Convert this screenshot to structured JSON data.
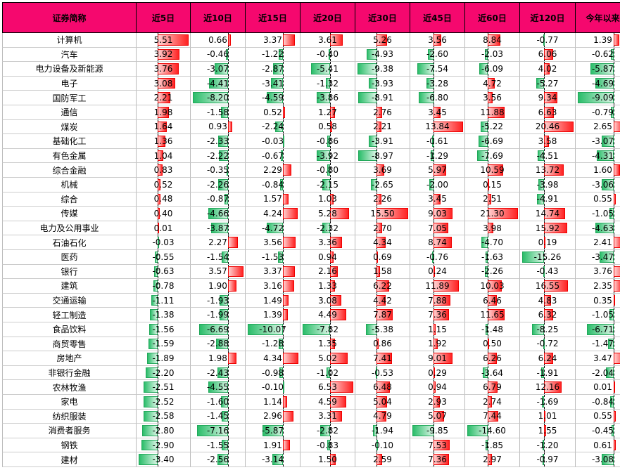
{
  "table": {
    "header": [
      "证券简称",
      "近5日",
      "近10日",
      "近15日",
      "近20日",
      "近30日",
      "近45日",
      "近60日",
      "近120日",
      "今年以来"
    ],
    "rows": [
      [
        "计算机",
        "5.51",
        "0.66",
        "3.37",
        "3.61",
        "5.26",
        "3.56",
        "8.84",
        "-0.77",
        "1.39"
      ],
      [
        "汽车",
        "3.92",
        "-0.46",
        "-1.22",
        "-0.40",
        "-4.93",
        "-2.60",
        "-2.03",
        "6.06",
        "-0.62"
      ],
      [
        "电力设备及新能源",
        "3.76",
        "-3.07",
        "-2.87",
        "-5.41",
        "-9.38",
        "-7.54",
        "-6.09",
        "4.02",
        "-5.87"
      ],
      [
        "电子",
        "3.08",
        "-4.41",
        "-3.41",
        "-1.32",
        "-3.93",
        "-3.28",
        "4.72",
        "-5.27",
        "-4.69"
      ],
      [
        "国防军工",
        "2.21",
        "-8.20",
        "-4.59",
        "-3.86",
        "-8.91",
        "-6.80",
        "3.56",
        "9.34",
        "-9.09"
      ],
      [
        "通信",
        "1.98",
        "-1.58",
        "0.52",
        "1.27",
        "2.76",
        "3.45",
        "11.88",
        "6.63",
        "-0.79"
      ],
      [
        "煤炭",
        "1.64",
        "0.93",
        "-2.24",
        "0.58",
        "2.21",
        "13.84",
        "-5.22",
        "20.46",
        "2.65"
      ],
      [
        "基础化工",
        "1.36",
        "-2.33",
        "-0.03",
        "-0.86",
        "-3.91",
        "-0.61",
        "-6.69",
        "3.58",
        "-3.07"
      ],
      [
        "有色金属",
        "1.04",
        "-2.22",
        "-0.67",
        "-3.92",
        "-8.97",
        "-1.29",
        "-7.69",
        "-4.51",
        "-4.31"
      ],
      [
        "综合金融",
        "0.83",
        "-0.35",
        "2.29",
        "-0.80",
        "3.69",
        "5.97",
        "10.59",
        "13.72",
        "1.60"
      ],
      [
        "机械",
        "0.52",
        "-2.26",
        "-0.84",
        "-2.15",
        "-2.65",
        "-2.00",
        "0.15",
        "-3.98",
        "-3.06"
      ],
      [
        "综合",
        "0.48",
        "-0.87",
        "1.57",
        "1.03",
        "2.26",
        "3.45",
        "2.51",
        "-4.91",
        "0.55"
      ],
      [
        "传媒",
        "0.40",
        "-4.66",
        "4.24",
        "5.28",
        "15.50",
        "9.03",
        "21.30",
        "14.74",
        "-1.05"
      ],
      [
        "电力及公用事业",
        "0.01",
        "-3.87",
        "-4.72",
        "-2.32",
        "2.70",
        "7.05",
        "3.98",
        "15.92",
        "-4.63"
      ],
      [
        "石油石化",
        "-0.03",
        "2.27",
        "3.56",
        "3.36",
        "4.34",
        "8.74",
        "-4.70",
        "0.19",
        "2.41"
      ],
      [
        "医药",
        "-0.55",
        "-1.54",
        "-1.53",
        "0.94",
        "0.69",
        "-0.76",
        "-1.63",
        "-15.26",
        "-3.47"
      ],
      [
        "银行",
        "-0.63",
        "3.57",
        "3.37",
        "2.16",
        "1.58",
        "0.24",
        "-2.26",
        "-0.43",
        "3.76"
      ],
      [
        "建筑",
        "-0.78",
        "1.90",
        "3.16",
        "1.33",
        "6.22",
        "11.89",
        "10.03",
        "16.55",
        "2.35"
      ],
      [
        "交通运输",
        "-1.11",
        "-1.93",
        "1.49",
        "3.08",
        "4.42",
        "7.88",
        "6.46",
        "4.83",
        "0.35"
      ],
      [
        "轻工制造",
        "-1.38",
        "-1.99",
        "1.39",
        "4.49",
        "7.87",
        "7.36",
        "11.65",
        "6.32",
        "-1.05"
      ],
      [
        "食品饮料",
        "-1.56",
        "-6.69",
        "-10.07",
        "-7.82",
        "-5.38",
        "1.15",
        "-1.48",
        "-8.25",
        "-6.71"
      ],
      [
        "商贸零售",
        "-1.59",
        "-2.88",
        "-1.28",
        "1.35",
        "0.86",
        "1.92",
        "0.50",
        "-0.72",
        "-1.47"
      ],
      [
        "房地产",
        "-1.89",
        "1.98",
        "4.34",
        "5.02",
        "7.41",
        "9.01",
        "6.26",
        "6.24",
        "3.47"
      ],
      [
        "非银行金融",
        "-2.20",
        "-2.43",
        "-0.98",
        "-1.02",
        "-0.53",
        "0.29",
        "-3.64",
        "-1.91",
        "-2.04"
      ],
      [
        "农林牧渔",
        "-2.51",
        "-4.55",
        "-0.10",
        "6.53",
        "6.48",
        "0.94",
        "6.79",
        "12.16",
        "0.01"
      ],
      [
        "家电",
        "-2.52",
        "-1.60",
        "1.14",
        "4.59",
        "5.04",
        "2.93",
        "2.74",
        "-1.69",
        "-0.84"
      ],
      [
        "纺织服装",
        "-2.58",
        "-1.45",
        "2.96",
        "3.31",
        "4.79",
        "5.07",
        "7.44",
        "1.01",
        "0.55"
      ],
      [
        "消费者服务",
        "-2.80",
        "-7.16",
        "-5.87",
        "-2.82",
        "-1.94",
        "-9.85",
        "-14.60",
        "1.55",
        "-0.45"
      ],
      [
        "钢铁",
        "-2.90",
        "-1.55",
        "1.91",
        "-0.83",
        "-0.10",
        "7.53",
        "-1.85",
        "-1.20",
        "0.61"
      ],
      [
        "建材",
        "-3.40",
        "-2.56",
        "-3.14",
        "1.50",
        "2.59",
        "7.36",
        "2.97",
        "-0.97",
        "-3.08"
      ]
    ]
  }
}
